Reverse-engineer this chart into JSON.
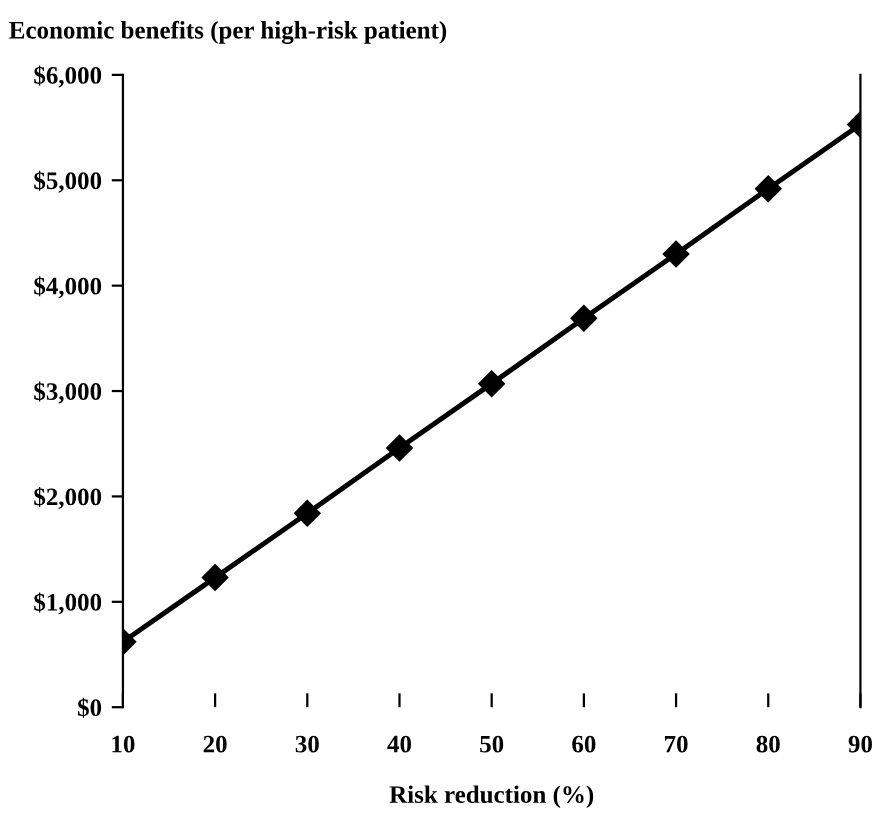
{
  "chart_data": {
    "type": "line",
    "title": "Economic benefits (per high-risk patient)",
    "xlabel": "Risk reduction (%)",
    "x": [
      10,
      20,
      30,
      40,
      50,
      60,
      70,
      80,
      90
    ],
    "series": [
      {
        "color": "#000000",
        "values": [
          620,
          1230,
          1840,
          2460,
          3070,
          3690,
          4300,
          4920,
          5530
        ]
      }
    ],
    "marker": "diamond",
    "line_style": "solid",
    "grid": false,
    "legend": false,
    "xlim": [
      10,
      90
    ],
    "xticks": [
      10,
      20,
      30,
      40,
      50,
      60,
      70,
      80,
      90
    ],
    "ylim": [
      0,
      6000
    ],
    "yticks": [
      {
        "value": 0,
        "label": "$0"
      },
      {
        "value": 1000,
        "label": "$1,000"
      },
      {
        "value": 2000,
        "label": "$2,000"
      },
      {
        "value": 3000,
        "label": "$3,000"
      },
      {
        "value": 4000,
        "label": "$4,000"
      },
      {
        "value": 5000,
        "label": "$5,000"
      },
      {
        "value": 6000,
        "label": "$6,000"
      }
    ]
  }
}
